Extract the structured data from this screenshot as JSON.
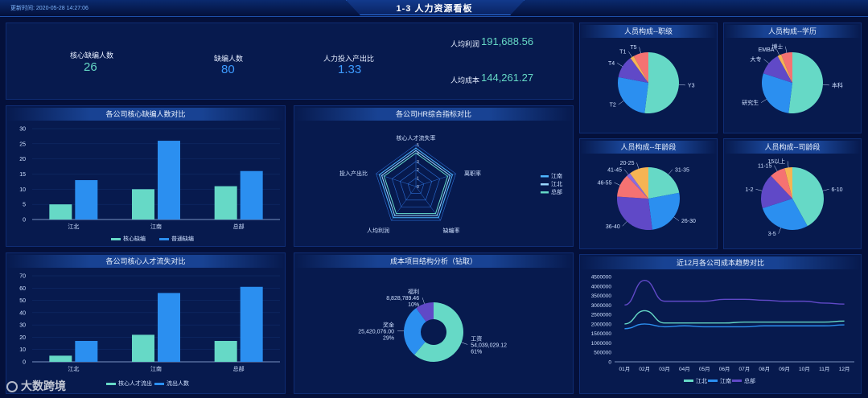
{
  "header": {
    "title": "1-3  人力资源看板",
    "update_label": "更新时间: 2020-05-28 14:27:06"
  },
  "kpi": [
    {
      "label": "核心缺编人数",
      "value": "26",
      "color": "#66d9c6"
    },
    {
      "label": "缺编人数",
      "value": "80",
      "color": "#3d9bff"
    },
    {
      "label": "人力投入产出比",
      "value": "1.33",
      "color": "#3d9bff"
    }
  ],
  "kpi_right": [
    {
      "label": "人均利润",
      "value": "191,688.56",
      "color": "#66d9c6"
    },
    {
      "label": "人均成本",
      "value": "144,261.27",
      "color": "#66d9c6"
    }
  ],
  "colors": {
    "teal": "#66d9c6",
    "blue": "#2b8ff0",
    "purple": "#6049c7",
    "salmon": "#f57272",
    "orange": "#f6b453",
    "panel": "#071a4e",
    "bg": "#04103a"
  },
  "panels": {
    "core_vacancy": "各公司核心缺编人数对比",
    "hr_radar": "各公司HR综合指标对比",
    "talent_loss": "各公司核心人才流失对比",
    "cost_structure": "成本项目结构分析（钻取）",
    "rank": "人员构成--职级",
    "edu": "人员构成--学历",
    "age": "人员构成--年龄段",
    "tenure": "人员构成--司龄段",
    "cost_trend": "近12月各公司成本趋势对比"
  },
  "chart_data": [
    {
      "id": "core_vacancy",
      "type": "bar",
      "categories": [
        "江北",
        "江南",
        "总部"
      ],
      "series": [
        {
          "name": "核心缺编",
          "values": [
            5,
            10,
            11
          ]
        },
        {
          "name": "普通缺编",
          "values": [
            13,
            26,
            16
          ]
        }
      ],
      "ylim": [
        0,
        30
      ],
      "yticks": [
        "0",
        "5",
        "10",
        "15",
        "20",
        "25",
        "30"
      ]
    },
    {
      "id": "hr_radar",
      "type": "radar",
      "indicators": [
        "核心人才流失率",
        "离职率",
        "缺编率",
        "人均利润",
        "投入产出比"
      ],
      "scale_ticks": [
        "0",
        "1",
        "2",
        "3",
        "4",
        "5"
      ],
      "series": [
        {
          "name": "江南"
        },
        {
          "name": "江北"
        },
        {
          "name": "总部"
        }
      ]
    },
    {
      "id": "talent_loss",
      "type": "bar",
      "categories": [
        "江北",
        "江南",
        "总部"
      ],
      "series": [
        {
          "name": "核心人才流出",
          "values": [
            5,
            22,
            17
          ]
        },
        {
          "name": "流出人数",
          "values": [
            17,
            56,
            61
          ]
        }
      ],
      "ylim": [
        0,
        70
      ],
      "yticks": [
        "0",
        "10",
        "20",
        "30",
        "40",
        "50",
        "60",
        "70"
      ]
    },
    {
      "id": "cost_structure",
      "type": "pie",
      "donut": true,
      "slices": [
        {
          "name": "工资",
          "value_text": "54,039,029.12",
          "pct": "61%",
          "value": 54039029.12
        },
        {
          "name": "奖金",
          "value_text": "25,420,076.00",
          "pct": "29%",
          "value": 25420076
        },
        {
          "name": "福利",
          "value_text": "8,828,789.46",
          "pct": "10%",
          "value": 8828789.46
        }
      ]
    },
    {
      "id": "rank",
      "type": "pie",
      "slices": [
        {
          "name": "Y3",
          "value": 52
        },
        {
          "name": "T2",
          "value": 26
        },
        {
          "name": "T4",
          "value": 12
        },
        {
          "name": "T1",
          "value": 2
        },
        {
          "name": "T5",
          "value": 8
        }
      ]
    },
    {
      "id": "edu",
      "type": "pie",
      "slices": [
        {
          "name": "本科",
          "value": 52
        },
        {
          "name": "研究生",
          "value": 28
        },
        {
          "name": "大专",
          "value": 12
        },
        {
          "name": "EMBA",
          "value": 2
        },
        {
          "name": "博士",
          "value": 6
        }
      ]
    },
    {
      "id": "age",
      "type": "pie",
      "slices": [
        {
          "name": "31-35",
          "value": 22
        },
        {
          "name": "26-30",
          "value": 26
        },
        {
          "name": "36-40",
          "value": 28
        },
        {
          "name": "46-55",
          "value": 12
        },
        {
          "name": "41-45",
          "value": 2
        },
        {
          "name": "20-25",
          "value": 10
        }
      ]
    },
    {
      "id": "tenure",
      "type": "pie",
      "slices": [
        {
          "name": "6-10",
          "value": 42
        },
        {
          "name": "3-5",
          "value": 28
        },
        {
          "name": "1-2",
          "value": 18
        },
        {
          "name": "11-15",
          "value": 8
        },
        {
          "name": "15以上",
          "value": 4
        }
      ]
    },
    {
      "id": "cost_trend",
      "type": "line",
      "categories": [
        "01月",
        "02月",
        "03月",
        "04月",
        "05月",
        "06月",
        "07月",
        "08月",
        "09月",
        "10月",
        "11月",
        "12月"
      ],
      "ylim": [
        0,
        4500000
      ],
      "yticks": [
        "0",
        "500000",
        "1000000",
        "1500000",
        "2000000",
        "2500000",
        "3000000",
        "3500000",
        "4000000",
        "4500000"
      ],
      "series": [
        {
          "name": "江北",
          "values": [
            2000000,
            2700000,
            2050000,
            2050000,
            2050000,
            2050000,
            2100000,
            2100000,
            2100000,
            2100000,
            2100000,
            2150000
          ]
        },
        {
          "name": "江南",
          "values": [
            1750000,
            2000000,
            1850000,
            1900000,
            1850000,
            1850000,
            1850000,
            1900000,
            1900000,
            1900000,
            1900000,
            1950000
          ]
        },
        {
          "name": "总部",
          "values": [
            3000000,
            4300000,
            3200000,
            3200000,
            3200000,
            3300000,
            3300000,
            3250000,
            3200000,
            3200000,
            3100000,
            3050000
          ]
        }
      ]
    }
  ],
  "watermark": "大数跨境"
}
